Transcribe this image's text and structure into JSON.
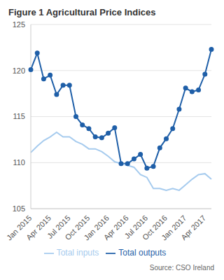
{
  "chart_data": {
    "type": "line",
    "title": "Figure 1 Agricultural Price Indices",
    "annotation": "Source: CSO Ireland",
    "categories": [
      "Jan 2015",
      null,
      null,
      "Apr 2015",
      null,
      null,
      "Jul 2015",
      null,
      null,
      "Oct 2015",
      null,
      null,
      "Jan 2016",
      null,
      null,
      "Apr 2016",
      null,
      null,
      "Jul 2016",
      null,
      null,
      "Oct 2016",
      null,
      null,
      "Jan 2017",
      null,
      null,
      "Apr 2017",
      null
    ],
    "series": [
      {
        "name": "Total outputs",
        "color": "#1f5fa8",
        "marker": "circle",
        "values": [
          120.1,
          121.9,
          119.1,
          119.5,
          117.4,
          118.4,
          118.4,
          115.0,
          114.1,
          113.7,
          112.8,
          112.7,
          113.2,
          113.8,
          109.9,
          109.9,
          110.4,
          110.9,
          109.4,
          109.6,
          111.6,
          112.6,
          113.7,
          115.8,
          118.1,
          117.7,
          117.9,
          119.6,
          122.3
        ]
      },
      {
        "name": "Total inputs",
        "color": "#a6cbee",
        "marker": "none",
        "values": [
          111.1,
          111.8,
          112.4,
          112.8,
          113.3,
          112.8,
          112.8,
          112.3,
          112.0,
          111.5,
          111.5,
          111.2,
          110.7,
          110.1,
          109.9,
          109.7,
          109.5,
          108.7,
          108.4,
          107.2,
          107.2,
          107.0,
          107.2,
          107.0,
          107.6,
          108.2,
          108.7,
          108.8,
          108.2
        ]
      }
    ],
    "ylim": [
      105,
      125
    ],
    "yticks": [
      105,
      110,
      115,
      120,
      125
    ],
    "grid": true,
    "legend": "bottom"
  }
}
